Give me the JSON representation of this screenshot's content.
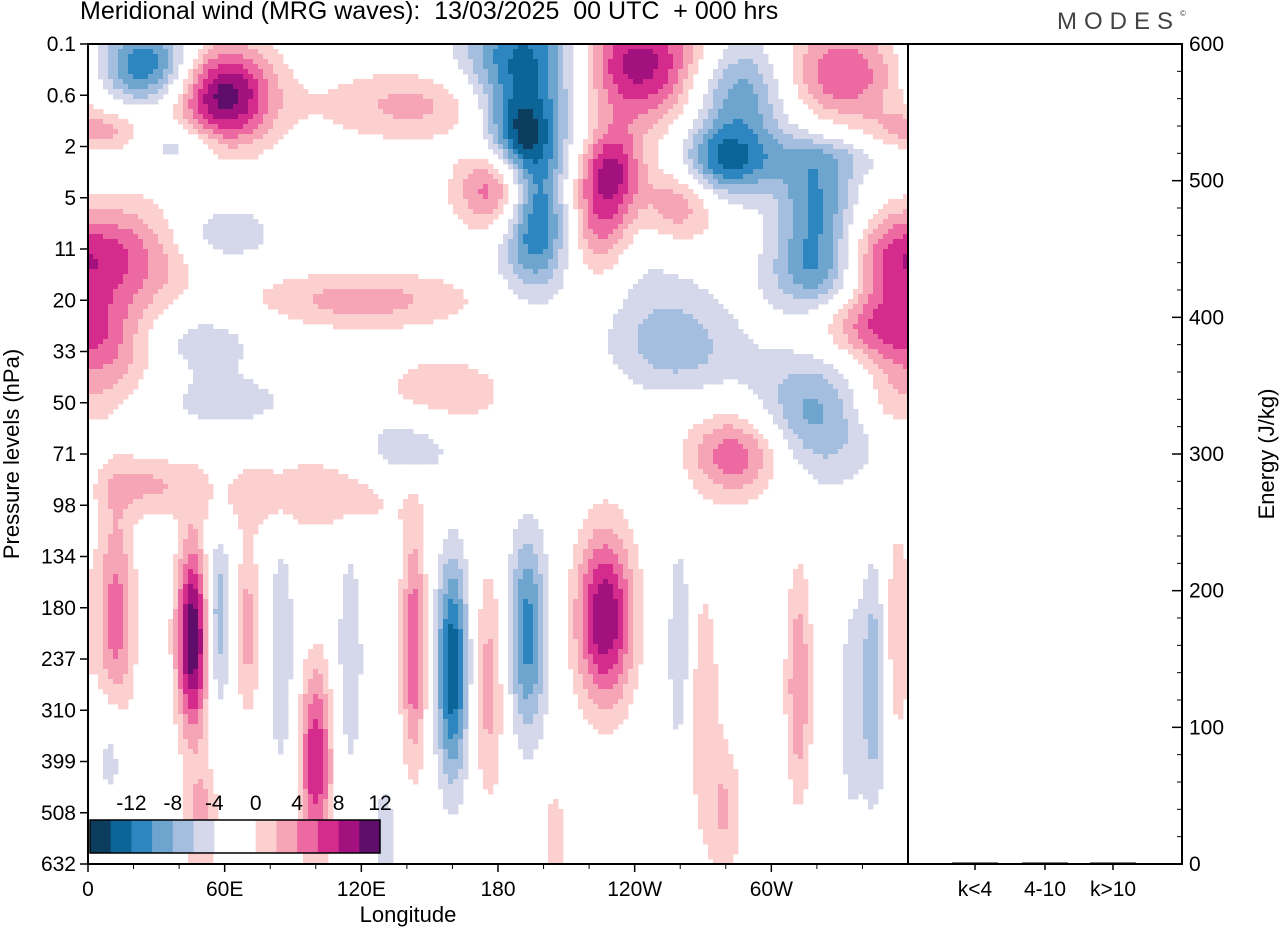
{
  "header": {
    "title": "Meridional wind (MRG waves):  13/03/2025  00 UTC  + 000 hrs",
    "logo": "MODES"
  },
  "colors": {
    "neg": [
      "#0c3d5e",
      "#0d6497",
      "#2e86c1",
      "#6ea5cf",
      "#a4bedf",
      "#d4d8ea"
    ],
    "pos": [
      "#fbd0ce",
      "#f6a5b6",
      "#ec69a1",
      "#d42b8c",
      "#a3117f",
      "#5e0d6b"
    ],
    "zero": "#ffffff"
  },
  "chart_data": [
    {
      "type": "heatmap",
      "title": "Meridional wind (MRG waves):  13/03/2025  00 UTC  + 000 hrs",
      "xlabel": "Longitude",
      "ylabel": "Pressure levels (hPa)",
      "x_ticks": [
        "0",
        "60E",
        "120E",
        "180",
        "120W",
        "60W"
      ],
      "y_ticks": [
        "0.1",
        "0.6",
        "2",
        "5",
        "11",
        "20",
        "33",
        "50",
        "71",
        "98",
        "134",
        "180",
        "237",
        "310",
        "399",
        "508",
        "632"
      ],
      "colorbar": {
        "labels": [
          "-12",
          "-8",
          "-4",
          "0",
          "4",
          "8",
          "12"
        ],
        "levels": [
          -14,
          -12,
          -10,
          -8,
          -6,
          -4,
          -2,
          0,
          2,
          4,
          6,
          8,
          10,
          12,
          14
        ]
      },
      "blobs": [
        {
          "lon": 25,
          "lev": 0.4,
          "amp": -10,
          "wl": 15,
          "wv": 0.55
        },
        {
          "lon": 60,
          "lev": 1.0,
          "amp": 13,
          "wl": 15,
          "wv": 0.7
        },
        {
          "lon": 5,
          "lev": 1.7,
          "amp": 5,
          "wl": 15,
          "wv": 0.3
        },
        {
          "lon": 40,
          "lev": 2.0,
          "amp": -4,
          "wl": 12,
          "wv": 0.3
        },
        {
          "lon": 150,
          "lev": 1.2,
          "amp": 5,
          "wl": 35,
          "wv": 0.5
        },
        {
          "lon": 195,
          "lev": 0.5,
          "amp": -13,
          "wl": 20,
          "wv": 1.1
        },
        {
          "lon": 190,
          "lev": 1.8,
          "amp": -8,
          "wl": 10,
          "wv": 0.6
        },
        {
          "lon": 240,
          "lev": 0.4,
          "amp": 12,
          "wl": 25,
          "wv": 0.8
        },
        {
          "lon": 285,
          "lev": 0.9,
          "amp": -9,
          "wl": 17,
          "wv": 0.8
        },
        {
          "lon": 330,
          "lev": 0.6,
          "amp": 8,
          "wl": 20,
          "wv": 0.7
        },
        {
          "lon": 260,
          "lev": 2.8,
          "amp": 8,
          "wl": 12,
          "wv": 0.8
        },
        {
          "lon": 275,
          "lev": 2.3,
          "amp": -11,
          "wl": 18,
          "wv": 0.5
        },
        {
          "lon": 330,
          "lev": 2.2,
          "amp": -3,
          "wl": 20,
          "wv": 0.3
        },
        {
          "lon": 180,
          "lev": 2.8,
          "amp": 9,
          "wl": 13,
          "wv": 0.6
        },
        {
          "lon": 197,
          "lev": 3.1,
          "amp": -8,
          "wl": 9,
          "wv": 0.8
        },
        {
          "lon": 230,
          "lev": 2.4,
          "amp": 9,
          "wl": 10,
          "wv": 0.6
        },
        {
          "lon": 225,
          "lev": 3.5,
          "amp": 7,
          "wl": 10,
          "wv": 0.8
        },
        {
          "lon": 320,
          "lev": 3.1,
          "amp": -8,
          "wl": 12,
          "wv": 0.8
        },
        {
          "lon": 320,
          "lev": 4.5,
          "amp": -7,
          "wl": 15,
          "wv": 0.6
        },
        {
          "lon": 350,
          "lev": 4.2,
          "amp": 6,
          "wl": 15,
          "wv": 0.6
        },
        {
          "lon": 15,
          "lev": 4.2,
          "amp": 7,
          "wl": 20,
          "wv": 0.8
        },
        {
          "lon": 60,
          "lev": 3.7,
          "amp": -4,
          "wl": 15,
          "wv": 0.4
        },
        {
          "lon": 120,
          "lev": 5.0,
          "amp": 5,
          "wl": 35,
          "wv": 0.4
        },
        {
          "lon": 195,
          "lev": 4.0,
          "amp": -5,
          "wl": 12,
          "wv": 0.8
        },
        {
          "lon": 250,
          "lev": 4.8,
          "amp": -3,
          "wl": 20,
          "wv": 1.0
        },
        {
          "lon": 10,
          "lev": 6.0,
          "amp": 6,
          "wl": 18,
          "wv": 0.6
        },
        {
          "lon": 40,
          "lev": 5.8,
          "amp": -4,
          "wl": 25,
          "wv": 0.5
        },
        {
          "lon": 345,
          "lev": 5.5,
          "amp": 7,
          "wl": 20,
          "wv": 0.5
        },
        {
          "lon": 260,
          "lev": 6.0,
          "amp": -4,
          "wl": 20,
          "wv": 0.6
        },
        {
          "lon": 155,
          "lev": 6.8,
          "amp": 4,
          "wl": 20,
          "wv": 0.5
        },
        {
          "lon": 60,
          "lev": 7.0,
          "amp": -3,
          "wl": 22,
          "wv": 0.4
        },
        {
          "lon": 320,
          "lev": 7.2,
          "amp": -7,
          "wl": 20,
          "wv": 0.9
        },
        {
          "lon": 350,
          "lev": 7.0,
          "amp": 4,
          "wl": 15,
          "wv": 0.5
        },
        {
          "lon": 140,
          "lev": 7.9,
          "amp": -4,
          "wl": 15,
          "wv": 0.6
        },
        {
          "lon": 285,
          "lev": 8.0,
          "amp": 8,
          "wl": 15,
          "wv": 0.6
        },
        {
          "lon": 25,
          "lev": 8.6,
          "amp": 4,
          "wl": 15,
          "wv": 0.4
        },
        {
          "lon": 100,
          "lev": 8.8,
          "amp": 4,
          "wl": 35,
          "wv": 0.5
        },
        {
          "lon": 12,
          "lev": 11.2,
          "amp": 7,
          "wl": 6,
          "wv": 1.6
        },
        {
          "lon": 46,
          "lev": 11.6,
          "amp": 14,
          "wl": 5,
          "wv": 1.3
        },
        {
          "lon": 57,
          "lev": 11.2,
          "amp": -6,
          "wl": 4,
          "wv": 1.2
        },
        {
          "lon": 70,
          "lev": 11.4,
          "amp": 5,
          "wl": 4,
          "wv": 1.2
        },
        {
          "lon": 85,
          "lev": 11.9,
          "amp": -4,
          "wl": 4,
          "wv": 1.7
        },
        {
          "lon": 100,
          "lev": 14.0,
          "amp": 10,
          "wl": 5,
          "wv": 1.3
        },
        {
          "lon": 115,
          "lev": 12.0,
          "amp": -4,
          "wl": 4,
          "wv": 1.6
        },
        {
          "lon": 143,
          "lev": 11.8,
          "amp": 8,
          "wl": 4,
          "wv": 1.6
        },
        {
          "lon": 160,
          "lev": 12.2,
          "amp": -12,
          "wl": 5,
          "wv": 1.5
        },
        {
          "lon": 176,
          "lev": 12.5,
          "amp": 5,
          "wl": 5,
          "wv": 1.6
        },
        {
          "lon": 193,
          "lev": 11.5,
          "amp": -9,
          "wl": 6,
          "wv": 1.4
        },
        {
          "lon": 227,
          "lev": 11.2,
          "amp": 12,
          "wl": 9,
          "wv": 1.2
        },
        {
          "lon": 260,
          "lev": 11.8,
          "amp": -4,
          "wl": 4,
          "wv": 1.6
        },
        {
          "lon": 270,
          "lev": 13.0,
          "amp": 4,
          "wl": 5,
          "wv": 1.8
        },
        {
          "lon": 312,
          "lev": 12.5,
          "amp": 6,
          "wl": 4,
          "wv": 1.6
        },
        {
          "lon": 335,
          "lev": 13.0,
          "amp": -3,
          "wl": 4,
          "wv": 1.8
        },
        {
          "lon": 345,
          "lev": 12.5,
          "amp": -6,
          "wl": 4,
          "wv": 1.6
        },
        {
          "lon": 355,
          "lev": 11.5,
          "amp": 4,
          "wl": 4,
          "wv": 1.5
        },
        {
          "lon": 10,
          "lev": 13.8,
          "amp": -4,
          "wl": 5,
          "wv": 0.8
        },
        {
          "lon": 50,
          "lev": 15.2,
          "amp": 5,
          "wl": 5,
          "wv": 0.8
        },
        {
          "lon": 280,
          "lev": 15.0,
          "amp": 4,
          "wl": 5,
          "wv": 1.0
        },
        {
          "lon": 130,
          "lev": 15.5,
          "amp": -3,
          "wl": 4,
          "wv": 1.0
        },
        {
          "lon": 205,
          "lev": 15.5,
          "amp": 4,
          "wl": 3,
          "wv": 0.7
        }
      ]
    },
    {
      "type": "bar",
      "categories": [
        "k<4",
        "4-10",
        "k>10"
      ],
      "values": [
        0,
        1,
        0
      ],
      "ylabel": "Energy (J/kg)",
      "ylim": [
        0,
        600
      ],
      "y_ticks": [
        "0",
        "100",
        "200",
        "300",
        "400",
        "500",
        "600"
      ]
    }
  ]
}
